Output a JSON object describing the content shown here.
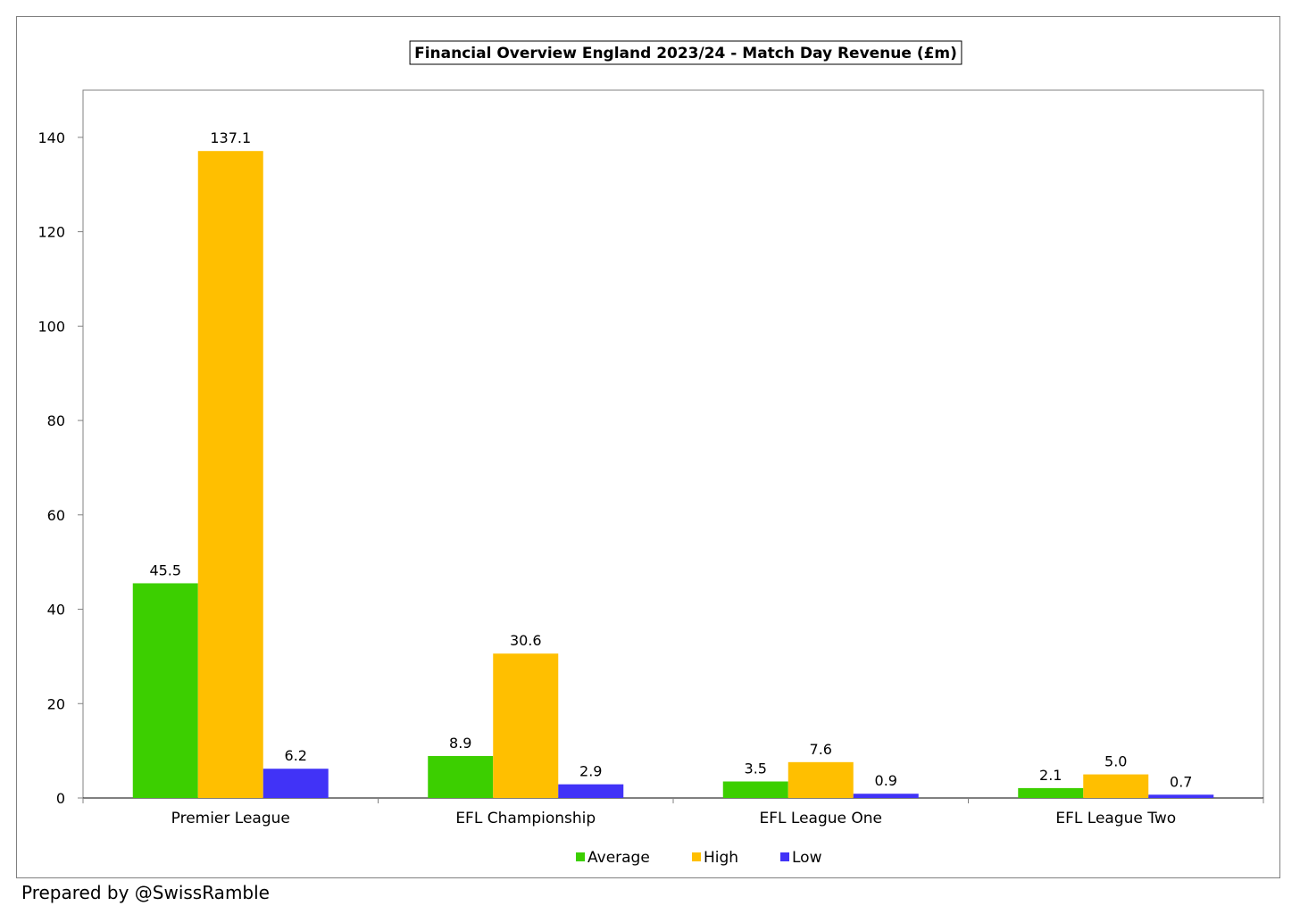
{
  "chart_data": {
    "type": "bar",
    "title": "Financial Overview England 2023/24 - Match Day Revenue (£m)",
    "xlabel": "",
    "ylabel": "",
    "categories": [
      "Premier League",
      "EFL Championship",
      "EFL League One",
      "EFL League Two"
    ],
    "series": [
      {
        "name": "Average",
        "color": "#3ccf00",
        "values": [
          45.5,
          8.9,
          3.5,
          2.1
        ],
        "labels": [
          "45.5",
          "8.9",
          "3.5",
          "2.1"
        ]
      },
      {
        "name": "High",
        "color": "#ffbf00",
        "values": [
          137.1,
          30.6,
          7.6,
          5.0
        ],
        "labels": [
          "137.1",
          "30.6",
          "7.6",
          "5.0"
        ]
      },
      {
        "name": "Low",
        "color": "#4133f7",
        "values": [
          6.2,
          2.9,
          0.9,
          0.7
        ],
        "labels": [
          "6.2",
          "2.9",
          "0.9",
          "0.7"
        ]
      }
    ],
    "ylim": [
      0,
      150
    ],
    "yticks": [
      0,
      20,
      40,
      60,
      80,
      100,
      120,
      140
    ],
    "grid": false,
    "legend_position": "bottom-center"
  },
  "footer": {
    "credit": "Prepared by @SwissRamble"
  }
}
